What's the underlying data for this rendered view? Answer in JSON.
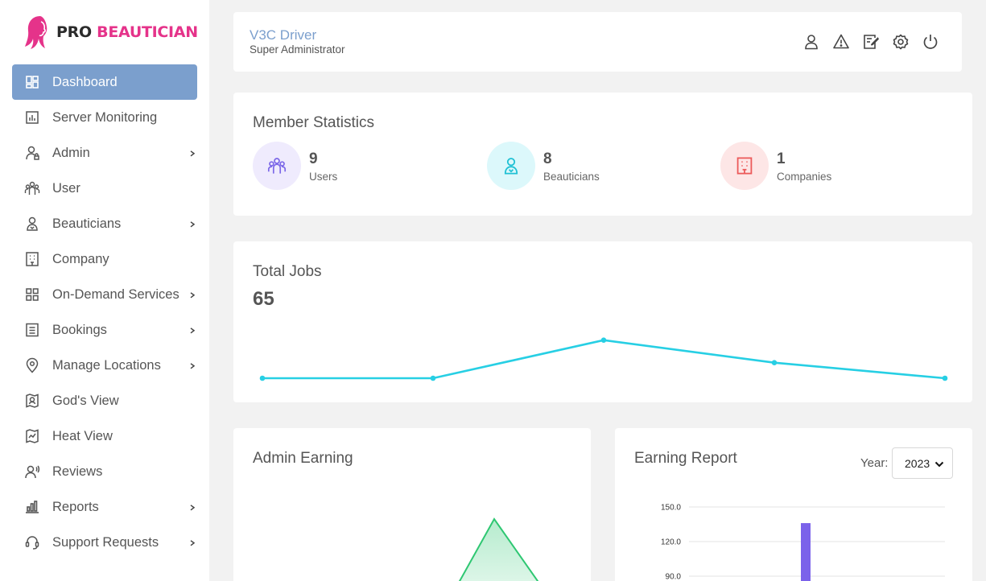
{
  "brand": {
    "pro": "PRO",
    "name": "BEAUTICIAN"
  },
  "sidebar": {
    "items": [
      {
        "label": "Dashboard",
        "icon": "dashboard-icon",
        "active": true
      },
      {
        "label": "Server Monitoring",
        "icon": "bar-chart-icon"
      },
      {
        "label": "Admin",
        "icon": "admin-user-icon",
        "expandable": true
      },
      {
        "label": "User",
        "icon": "users-icon"
      },
      {
        "label": "Beauticians",
        "icon": "beautician-icon",
        "expandable": true
      },
      {
        "label": "Company",
        "icon": "building-icon"
      },
      {
        "label": "On-Demand Services",
        "icon": "grid-icon",
        "expandable": true
      },
      {
        "label": "Bookings",
        "icon": "list-icon",
        "expandable": true
      },
      {
        "label": "Manage Locations",
        "icon": "location-pin-icon",
        "expandable": true
      },
      {
        "label": "God's View",
        "icon": "map-pin-icon"
      },
      {
        "label": "Heat View",
        "icon": "heat-map-icon"
      },
      {
        "label": "Reviews",
        "icon": "reviews-icon"
      },
      {
        "label": "Reports",
        "icon": "reports-icon",
        "expandable": true
      },
      {
        "label": "Support Requests",
        "icon": "headset-icon",
        "expandable": true
      }
    ]
  },
  "header": {
    "user_name": "V3C Driver",
    "user_role": "Super Administrator",
    "icons": [
      "profile-icon",
      "alert-icon",
      "edit-note-icon",
      "settings-icon",
      "power-icon"
    ]
  },
  "member_stats": {
    "title": "Member Statistics",
    "items": [
      {
        "value": "9",
        "label": "Users",
        "icon": "users-icon",
        "color": "#7c68e8",
        "bg": "#efebfd"
      },
      {
        "value": "8",
        "label": "Beauticians",
        "icon": "beautician-icon",
        "color": "#1fc1d4",
        "bg": "#dcf8fb"
      },
      {
        "value": "1",
        "label": "Companies",
        "icon": "building-icon",
        "color": "#ec5a5a",
        "bg": "#fde6e6"
      }
    ]
  },
  "total_jobs": {
    "title": "Total Jobs",
    "value": "65"
  },
  "admin_earning": {
    "title": "Admin Earning"
  },
  "earning_report": {
    "title": "Earning Report",
    "year_label": "Year:",
    "year": "2023"
  },
  "chart_data": [
    {
      "type": "line",
      "title": "Total Jobs",
      "values": [
        3,
        3,
        25,
        12,
        3
      ],
      "color": "#27cfe4",
      "axes_visible": false
    },
    {
      "type": "area",
      "title": "Admin Earning",
      "color": "#2ec772"
    },
    {
      "type": "bar",
      "title": "Earning Report",
      "yticks": [
        "150.0",
        "120.0",
        "90.0"
      ],
      "ylim": [
        0,
        150
      ],
      "values": [
        136
      ],
      "color": "#7b62ea",
      "grid": true
    }
  ]
}
